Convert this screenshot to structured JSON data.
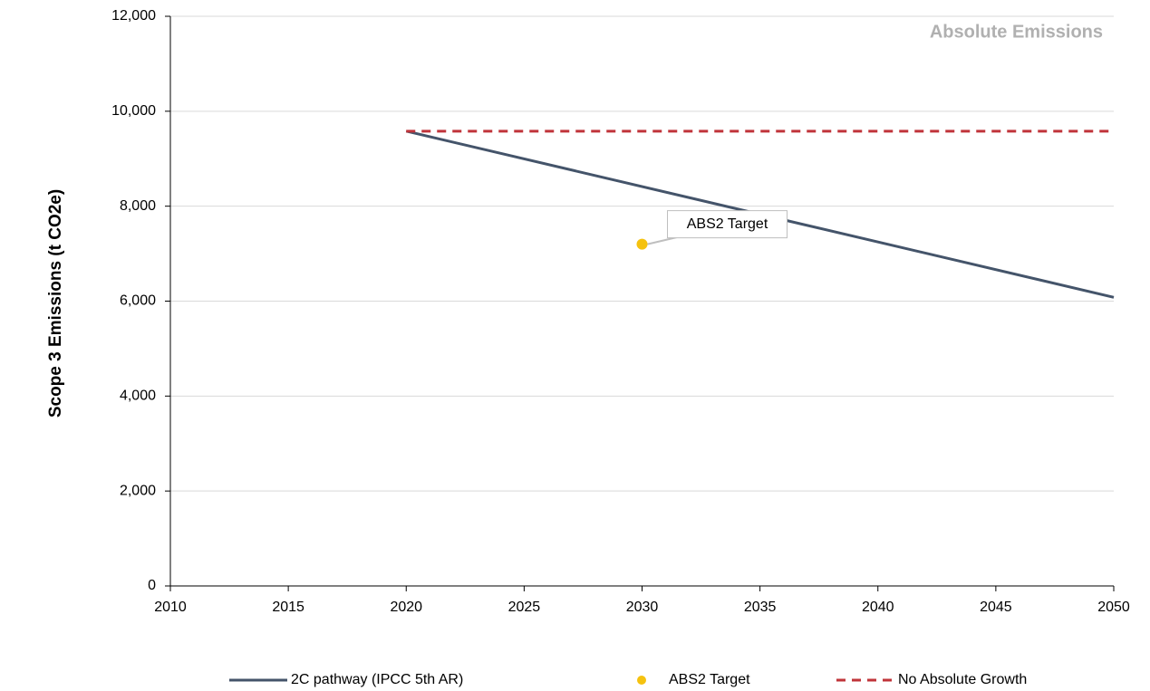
{
  "chart_data": {
    "type": "line",
    "annotation": "Absolute Emissions",
    "ylabel": "Scope 3 Emissions (t CO2e)",
    "xlim": [
      2010,
      2050
    ],
    "xticks": [
      2010,
      2015,
      2020,
      2025,
      2030,
      2035,
      2040,
      2045,
      2050
    ],
    "ylim": [
      0,
      12000
    ],
    "yticks": [
      0,
      {
        "value": 2000,
        "label": "2,000"
      },
      {
        "value": 4000,
        "label": "4,000"
      },
      {
        "value": 6000,
        "label": "6,000"
      },
      {
        "value": 8000,
        "label": "8,000"
      },
      {
        "value": 10000,
        "label": "10,000"
      },
      {
        "value": 12000,
        "label": "12,000"
      }
    ],
    "grid": true,
    "legend": "bottom",
    "series": [
      {
        "name": "2C pathway (IPCC 5th AR)",
        "color": "#44546a",
        "style": "solid",
        "x": [
          2020,
          2050
        ],
        "values": [
          9580,
          6080
        ]
      },
      {
        "name": "ABS2 Target",
        "color": "#f5c20f",
        "style": "marker",
        "x": [
          2030
        ],
        "values": [
          7200
        ]
      },
      {
        "name": "No Absolute Growth",
        "color": "#c0343a",
        "style": "dashed",
        "x": [
          2020,
          2050
        ],
        "values": [
          9580,
          9580
        ]
      }
    ]
  }
}
